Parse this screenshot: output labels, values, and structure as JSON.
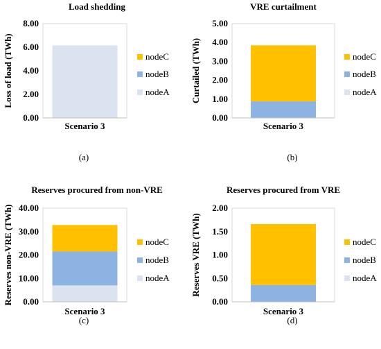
{
  "chart_data": [
    {
      "type": "bar",
      "stacked": true,
      "title": "Load shedding",
      "ylabel": "Loss of load (TWh)",
      "xlabel": "",
      "categories": [
        "Scenario 3"
      ],
      "ylim": [
        0,
        8
      ],
      "yticks": [
        "0.00",
        "2.00",
        "4.00",
        "6.00",
        "8.00"
      ],
      "series": [
        {
          "name": "nodeA",
          "color": "#dae3ef",
          "values": [
            6.15
          ]
        },
        {
          "name": "nodeB",
          "color": "#8db3e2",
          "values": [
            0
          ]
        },
        {
          "name": "nodeC",
          "color": "#ffc000",
          "values": [
            0
          ]
        }
      ],
      "legend_position": "right",
      "caption": "(a)"
    },
    {
      "type": "bar",
      "stacked": true,
      "title": "VRE curtailment",
      "ylabel": "Curtailed (TWh)",
      "xlabel": "",
      "categories": [
        "Scenario 3"
      ],
      "ylim": [
        0,
        5
      ],
      "yticks": [
        "0.00",
        "1.00",
        "2.00",
        "3.00",
        "4.00",
        "5.00"
      ],
      "series": [
        {
          "name": "nodeA",
          "color": "#dae3ef",
          "values": [
            0
          ]
        },
        {
          "name": "nodeB",
          "color": "#8db3e2",
          "values": [
            0.88
          ]
        },
        {
          "name": "nodeC",
          "color": "#ffc000",
          "values": [
            2.97
          ]
        }
      ],
      "legend_position": "right",
      "caption": "(b)"
    },
    {
      "type": "bar",
      "stacked": true,
      "title": "Reserves procured from non-VRE",
      "ylabel": "Reserves non-VRE (TWh)",
      "xlabel": "",
      "categories": [
        "Scenario 3"
      ],
      "ylim": [
        0,
        40
      ],
      "yticks": [
        "0.00",
        "10.00",
        "20.00",
        "30.00",
        "40.00"
      ],
      "series": [
        {
          "name": "nodeA",
          "color": "#dae3ef",
          "values": [
            7.0
          ]
        },
        {
          "name": "nodeB",
          "color": "#8db3e2",
          "values": [
            14.5
          ]
        },
        {
          "name": "nodeC",
          "color": "#ffc000",
          "values": [
            11.3
          ]
        }
      ],
      "legend_position": "right",
      "caption": "(c)"
    },
    {
      "type": "bar",
      "stacked": true,
      "title": "Reserves procured from VRE",
      "ylabel": "Reserves VRE (TWh)",
      "xlabel": "",
      "categories": [
        "Scenario 3"
      ],
      "ylim": [
        0,
        2
      ],
      "yticks": [
        "0.00",
        "0.50",
        "1.00",
        "1.50",
        "2.00"
      ],
      "series": [
        {
          "name": "nodeA",
          "color": "#dae3ef",
          "values": [
            0
          ]
        },
        {
          "name": "nodeB",
          "color": "#8db3e2",
          "values": [
            0.36
          ]
        },
        {
          "name": "nodeC",
          "color": "#ffc000",
          "values": [
            1.3
          ]
        }
      ],
      "legend_position": "right",
      "caption": "(d)"
    }
  ],
  "colors": {
    "nodeA": "#dae3ef",
    "nodeB": "#8db3e2",
    "nodeC": "#ffc000",
    "plot_border": "#d9d9d9",
    "axis": "#bfbfbf"
  }
}
